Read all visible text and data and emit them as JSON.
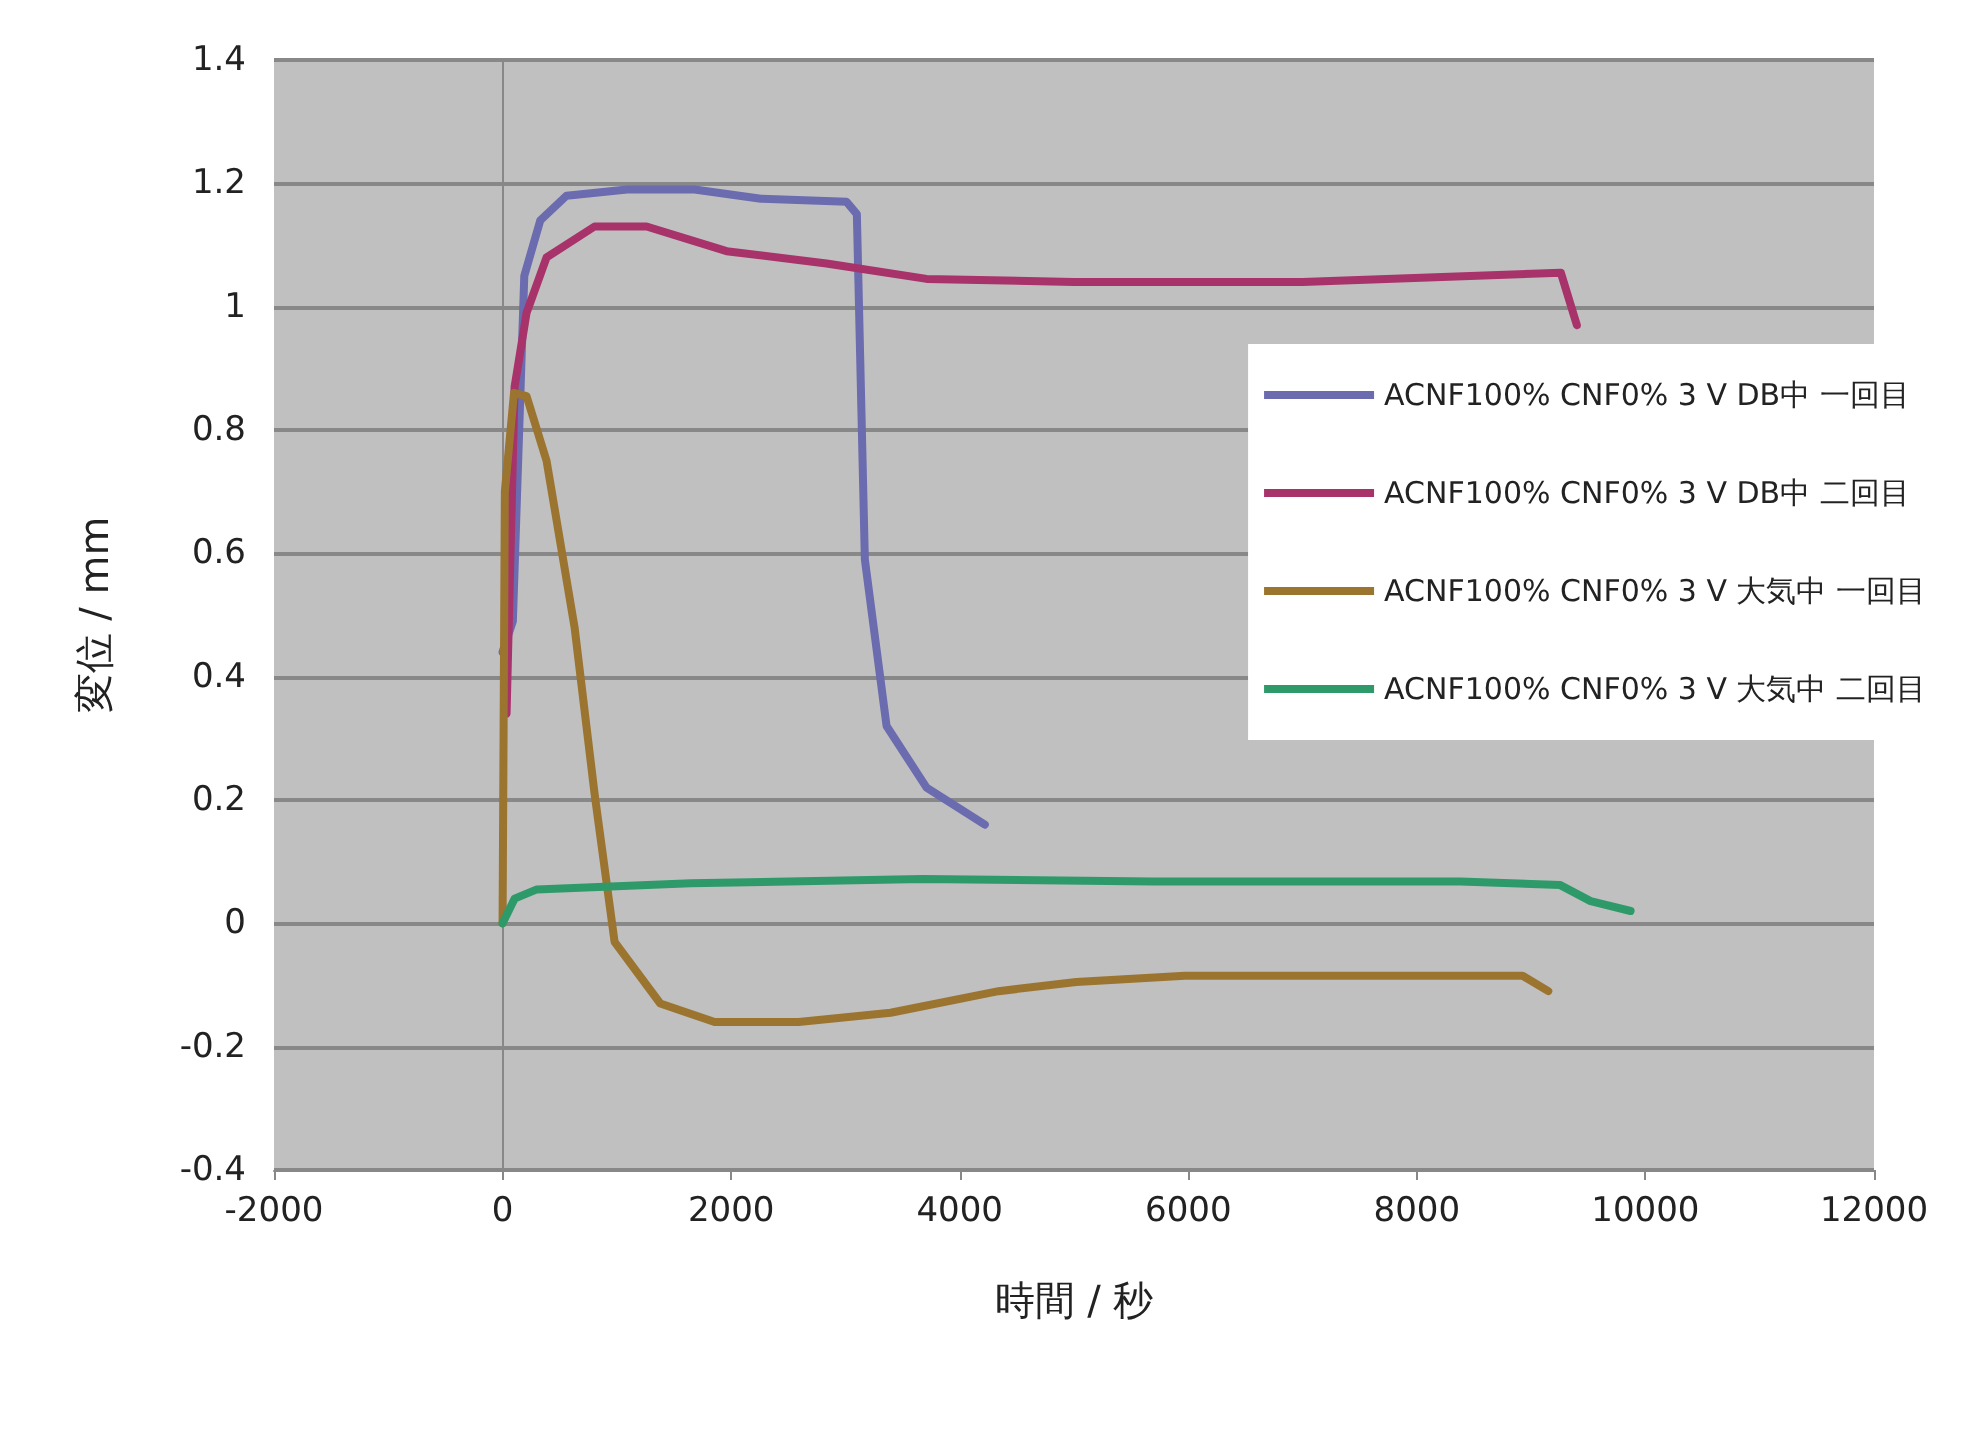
{
  "chart_data": {
    "type": "line",
    "xlabel": "時間 / 秒",
    "ylabel": "変位 / mm",
    "xlim": [
      -2000,
      12000
    ],
    "xticks": [
      -2000,
      0,
      2000,
      4000,
      6000,
      8000,
      10000,
      12000
    ],
    "ylim": [
      -0.4,
      1.4
    ],
    "yticks": [
      -0.4,
      -0.2,
      0,
      0.2,
      0.4,
      0.6,
      0.8,
      1,
      1.2,
      1.4
    ],
    "grid": "y",
    "legend": "right",
    "marker": "none",
    "line_style": "solid",
    "series": [
      {
        "name": "ACNF100% CNF0% 3 V DB中 一回目",
        "color": "#6b6bb0",
        "x": [
          0,
          90,
          190,
          330,
          560,
          1090,
          1680,
          2260,
          3010,
          3100,
          3170,
          3360,
          3710,
          4220
        ],
        "values": [
          0.44,
          0.49,
          1.05,
          1.14,
          1.18,
          1.19,
          1.19,
          1.175,
          1.17,
          1.15,
          0.59,
          0.32,
          0.22,
          0.16
        ]
      },
      {
        "name": "ACNF100% CNF0% 3 V DB中 二回目",
        "color": "#a8326a",
        "x": [
          35,
          105,
          210,
          385,
          805,
          1260,
          1960,
          2835,
          3710,
          5000,
          7000,
          9260,
          9400
        ],
        "values": [
          0.34,
          0.87,
          0.99,
          1.08,
          1.13,
          1.13,
          1.09,
          1.07,
          1.045,
          1.04,
          1.04,
          1.055,
          0.97
        ]
      },
      {
        "name": "ACNF100% CNF0% 3 V 大気中 一回目",
        "color": "#9b7430",
        "x": [
          0,
          20,
          100,
          210,
          385,
          630,
          805,
          980,
          1380,
          1855,
          2590,
          3395,
          4340,
          5020,
          5970,
          8925,
          9150
        ],
        "values": [
          0,
          0.7,
          0.86,
          0.855,
          0.75,
          0.48,
          0.21,
          -0.03,
          -0.13,
          -0.16,
          -0.16,
          -0.145,
          -0.11,
          -0.095,
          -0.085,
          -0.085,
          -0.11
        ]
      },
      {
        "name": "ACNF100% CNF0% 3 V 大気中 二回目",
        "color": "#2e9a6a",
        "x": [
          0,
          105,
          300,
          1645,
          3675,
          5690,
          8380,
          9255,
          9520,
          9870
        ],
        "values": [
          0,
          0.04,
          0.055,
          0.065,
          0.072,
          0.068,
          0.068,
          0.062,
          0.036,
          0.02
        ]
      }
    ]
  }
}
